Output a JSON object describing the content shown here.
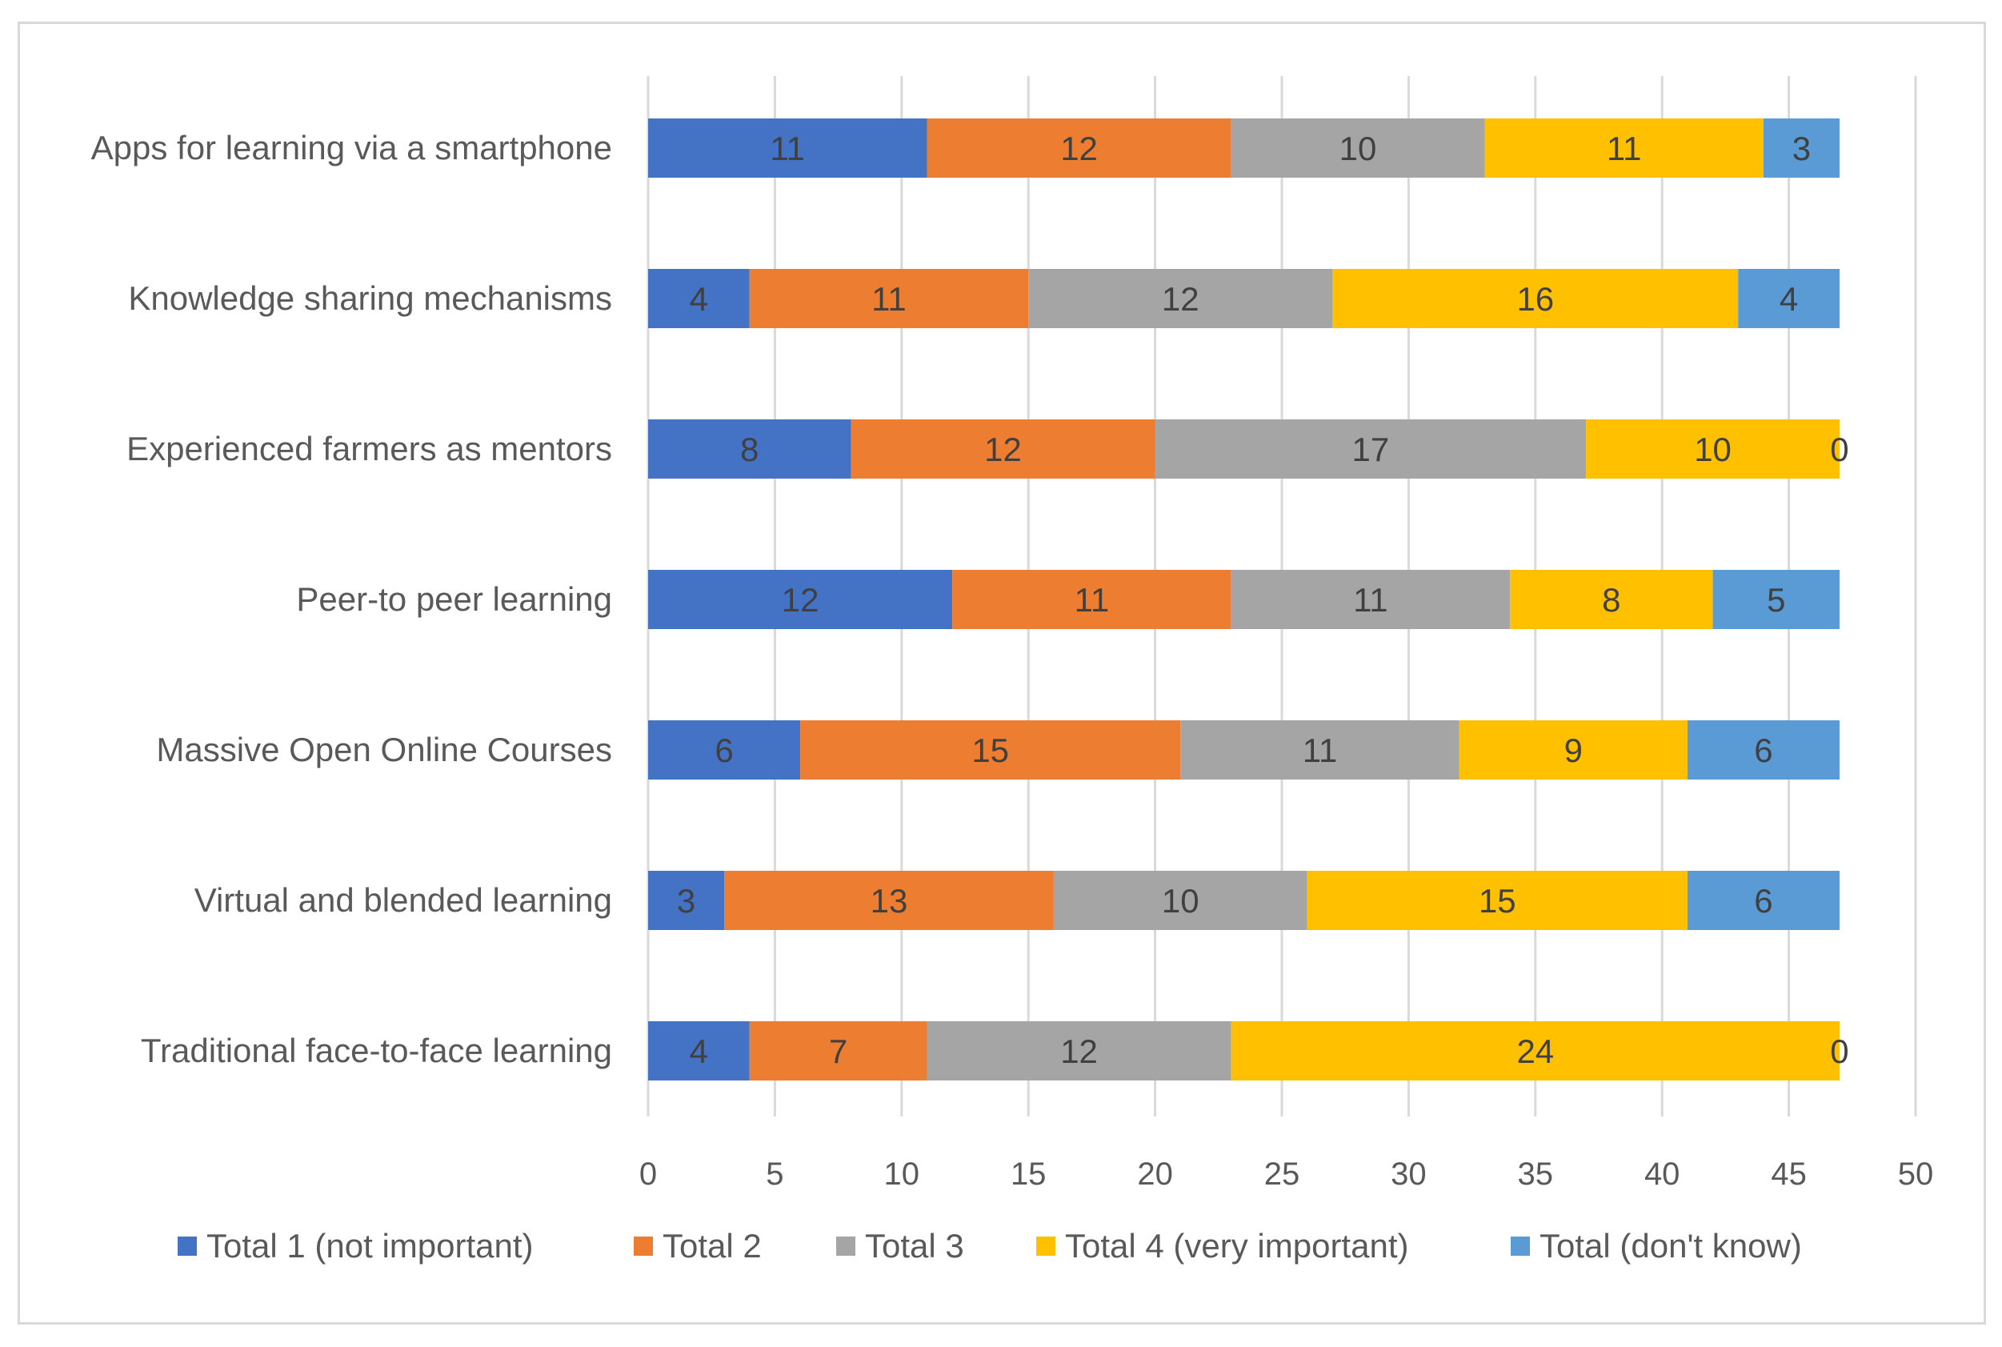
{
  "chart_data": {
    "type": "bar",
    "orientation": "horizontal",
    "stacked": true,
    "title": "",
    "xlabel": "",
    "ylabel": "",
    "xlim": [
      0,
      50
    ],
    "x_ticks": [
      0,
      5,
      10,
      15,
      20,
      25,
      30,
      35,
      40,
      45,
      50
    ],
    "grid": true,
    "legend_position": "bottom",
    "categories": [
      "Apps for learning via a smartphone",
      "Knowledge sharing mechanisms",
      "Experienced farmers as mentors",
      "Peer-to peer learning",
      "Massive Open Online Courses",
      "Virtual and blended learning",
      "Traditional face-to-face learning"
    ],
    "series": [
      {
        "name": "Total 1 (not important)",
        "color": "#4472C4",
        "values": [
          11,
          4,
          8,
          12,
          6,
          3,
          4
        ]
      },
      {
        "name": "Total 2",
        "color": "#ED7D31",
        "values": [
          12,
          11,
          12,
          11,
          15,
          13,
          7
        ]
      },
      {
        "name": "Total 3",
        "color": "#A5A5A5",
        "values": [
          10,
          12,
          17,
          11,
          11,
          10,
          12
        ]
      },
      {
        "name": "Total 4 (very important)",
        "color": "#FFC000",
        "values": [
          11,
          16,
          10,
          8,
          9,
          15,
          24
        ]
      },
      {
        "name": "Total (don't know)",
        "color": "#5B9BD5",
        "values": [
          3,
          4,
          0,
          5,
          6,
          6,
          0
        ]
      }
    ]
  }
}
